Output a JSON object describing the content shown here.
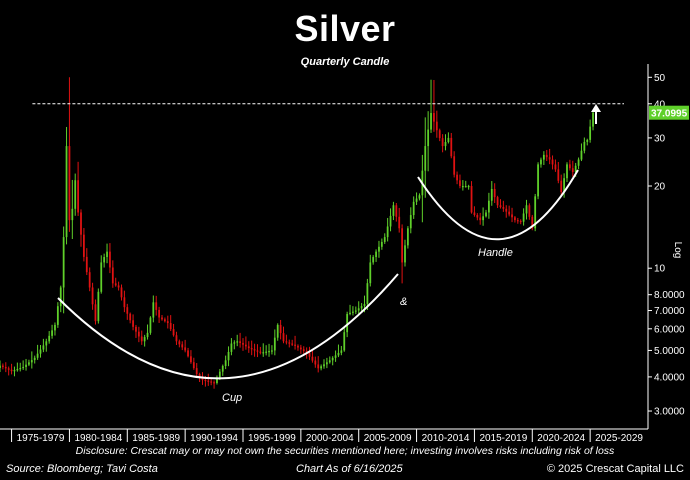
{
  "title": "Silver",
  "subtitle": "Quarterly Candle",
  "footer": {
    "disclosure": "Disclosure: Crescat may or may not own the securities mentioned here; investing involves risks including risk of loss",
    "source": "Source: Bloomberg; Tavi Costa",
    "as_of": "Chart As of 6/16/2025",
    "copyright": "© 2025 Crescat Capital LLC"
  },
  "colors": {
    "up": "#5FD02A",
    "down": "#E01212",
    "background": "#000000",
    "text": "#FFFFFF",
    "last_price_label": "#5FD02A"
  },
  "chart_data": {
    "type": "candlestick",
    "frequency": "quarterly",
    "y_scale": "log",
    "y_axis_title": "Log",
    "y_axis_side": "right",
    "ylim": [
      2.6,
      55
    ],
    "xlim": [
      "1974-01-01",
      "2030-01-01"
    ],
    "y_ticks": [
      {
        "value": 3,
        "label": "3.0000"
      },
      {
        "value": 4,
        "label": "4.0000"
      },
      {
        "value": 5,
        "label": "5.0000"
      },
      {
        "value": 6,
        "label": "6.0000"
      },
      {
        "value": 7,
        "label": "7.0000"
      },
      {
        "value": 8,
        "label": "8.0000"
      },
      {
        "value": 10,
        "label": "10"
      },
      {
        "value": 20,
        "label": "20"
      },
      {
        "value": 30,
        "label": "30"
      },
      {
        "value": 40,
        "label": "40"
      },
      {
        "value": 50,
        "label": "50"
      }
    ],
    "x_ticks": [
      "1975-1979",
      "1980-1984",
      "1985-1989",
      "1990-1994",
      "1995-1999",
      "2000-2004",
      "2005-2009",
      "2010-2014",
      "2015-2019",
      "2020-2024",
      "2025-2029"
    ],
    "last_price": {
      "value": 37.0995,
      "label": "37.0995"
    },
    "resistance_line": {
      "value": 40,
      "style": "dashed"
    },
    "annotations": [
      {
        "text": "Cup",
        "type": "label"
      },
      {
        "text": "&",
        "type": "label"
      },
      {
        "text": "Handle",
        "type": "label"
      },
      {
        "text": "up-arrow",
        "type": "arrow"
      }
    ],
    "closes": [
      {
        "t": 1974.0,
        "c": 4.4
      },
      {
        "t": 1975.0,
        "c": 4.2
      },
      {
        "t": 1976.0,
        "c": 4.35
      },
      {
        "t": 1977.0,
        "c": 4.7
      },
      {
        "t": 1978.0,
        "c": 5.4
      },
      {
        "t": 1978.75,
        "c": 6.2
      },
      {
        "t": 1979.25,
        "c": 8.5
      },
      {
        "t": 1979.5,
        "c": 13
      },
      {
        "t": 1979.75,
        "c": 28
      },
      {
        "t": 1980.0,
        "c": 15
      },
      {
        "t": 1980.25,
        "c": 16.5
      },
      {
        "t": 1980.5,
        "c": 21
      },
      {
        "t": 1980.75,
        "c": 16
      },
      {
        "t": 1981.25,
        "c": 11
      },
      {
        "t": 1981.75,
        "c": 8.5
      },
      {
        "t": 1982.25,
        "c": 6.4
      },
      {
        "t": 1982.75,
        "c": 10.5
      },
      {
        "t": 1983.25,
        "c": 11.5
      },
      {
        "t": 1983.75,
        "c": 8.8
      },
      {
        "t": 1984.25,
        "c": 8.5
      },
      {
        "t": 1984.75,
        "c": 7.2
      },
      {
        "t": 1985.5,
        "c": 6.1
      },
      {
        "t": 1986.25,
        "c": 5.4
      },
      {
        "t": 1986.75,
        "c": 5.8
      },
      {
        "t": 1987.25,
        "c": 7.5
      },
      {
        "t": 1987.75,
        "c": 6.6
      },
      {
        "t": 1988.5,
        "c": 6.3
      },
      {
        "t": 1989.25,
        "c": 5.4
      },
      {
        "t": 1990.0,
        "c": 5.0
      },
      {
        "t": 1991.0,
        "c": 4.1
      },
      {
        "t": 1991.5,
        "c": 3.9
      },
      {
        "t": 1992.5,
        "c": 3.8
      },
      {
        "t": 1993.5,
        "c": 4.6
      },
      {
        "t": 1994.0,
        "c": 5.3
      },
      {
        "t": 1994.5,
        "c": 5.4
      },
      {
        "t": 1995.5,
        "c": 5.1
      },
      {
        "t": 1996.5,
        "c": 4.9
      },
      {
        "t": 1997.5,
        "c": 5.0
      },
      {
        "t": 1998.0,
        "c": 6.2
      },
      {
        "t": 1998.5,
        "c": 5.4
      },
      {
        "t": 1999.5,
        "c": 5.2
      },
      {
        "t": 2000.5,
        "c": 4.9
      },
      {
        "t": 2001.5,
        "c": 4.3
      },
      {
        "t": 2002.5,
        "c": 4.6
      },
      {
        "t": 2003.5,
        "c": 5.0
      },
      {
        "t": 2004.0,
        "c": 6.8
      },
      {
        "t": 2004.75,
        "c": 7.0
      },
      {
        "t": 2005.5,
        "c": 7.4
      },
      {
        "t": 2006.0,
        "c": 10.5
      },
      {
        "t": 2006.5,
        "c": 11.5
      },
      {
        "t": 2007.25,
        "c": 13.0
      },
      {
        "t": 2008.0,
        "c": 17.0
      },
      {
        "t": 2008.5,
        "c": 14.0
      },
      {
        "t": 2008.75,
        "c": 10.5
      },
      {
        "t": 2009.25,
        "c": 14.0
      },
      {
        "t": 2009.75,
        "c": 17.5
      },
      {
        "t": 2010.25,
        "c": 18.5
      },
      {
        "t": 2010.75,
        "c": 28
      },
      {
        "t": 2011.25,
        "c": 37
      },
      {
        "t": 2011.75,
        "c": 32
      },
      {
        "t": 2012.25,
        "c": 28
      },
      {
        "t": 2012.75,
        "c": 30
      },
      {
        "t": 2013.25,
        "c": 22
      },
      {
        "t": 2013.75,
        "c": 20
      },
      {
        "t": 2014.5,
        "c": 20
      },
      {
        "t": 2014.75,
        "c": 16
      },
      {
        "t": 2015.5,
        "c": 15
      },
      {
        "t": 2016.0,
        "c": 16
      },
      {
        "t": 2016.5,
        "c": 19.5
      },
      {
        "t": 2017.0,
        "c": 17
      },
      {
        "t": 2017.5,
        "c": 16.5
      },
      {
        "t": 2018.5,
        "c": 15
      },
      {
        "t": 2019.0,
        "c": 14.8
      },
      {
        "t": 2019.5,
        "c": 17
      },
      {
        "t": 2020.0,
        "c": 14
      },
      {
        "t": 2020.5,
        "c": 24
      },
      {
        "t": 2021.0,
        "c": 26
      },
      {
        "t": 2021.5,
        "c": 25
      },
      {
        "t": 2022.0,
        "c": 23
      },
      {
        "t": 2022.5,
        "c": 19
      },
      {
        "t": 2023.0,
        "c": 24
      },
      {
        "t": 2023.5,
        "c": 22.5
      },
      {
        "t": 2024.0,
        "c": 25
      },
      {
        "t": 2024.5,
        "c": 29
      },
      {
        "t": 2024.75,
        "c": 29.5
      },
      {
        "t": 2025.0,
        "c": 33
      },
      {
        "t": 2025.25,
        "c": 37.0995
      }
    ]
  }
}
